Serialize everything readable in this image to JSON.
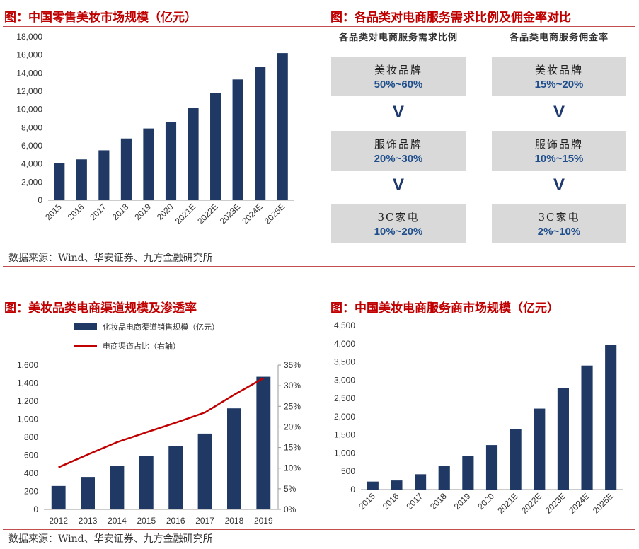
{
  "panels": {
    "p1": {
      "title": "图：中国零售美妆市场规模（亿元）"
    },
    "p2": {
      "title": "图：各品类对电商服务需求比例及佣金率对比",
      "col1_head": "各品类对电商服务需求比例",
      "col2_head": "各品类电商服务佣金率",
      "col1": [
        {
          "name": "美妆品牌",
          "range": "50%~60%"
        },
        {
          "name": "服饰品牌",
          "range": "20%~30%"
        },
        {
          "name": "3C家电",
          "range": "10%~20%"
        }
      ],
      "col2": [
        {
          "name": "美妆品牌",
          "range": "15%~20%"
        },
        {
          "name": "服饰品牌",
          "range": "10%~15%"
        },
        {
          "name": "3C家电",
          "range": "2%~10%"
        }
      ],
      "arrow": "V"
    },
    "p3": {
      "title": "图：美妆品类电商渠道规模及渗透率",
      "legend_bar": "化妆品电商渠道销售规模（亿元）",
      "legend_line": "电商渠道占比（右轴）"
    },
    "p4": {
      "title": "图：中国美妆电商服务商市场规模（亿元）"
    }
  },
  "sources": {
    "top": "数据来源：Wind、华安证券、九方金融研究所",
    "bottom": "数据来源：Wind、华安证券、九方金融研究所"
  },
  "colors": {
    "bar": "#1f3864",
    "line": "#c00000",
    "title": "#c00000"
  },
  "chart_data": [
    {
      "type": "bar",
      "id": "c1",
      "categories": [
        "2015",
        "2016",
        "2017",
        "2018",
        "2019",
        "2020",
        "2021E",
        "2022E",
        "2023E",
        "2024E",
        "2025E"
      ],
      "values": [
        4100,
        4500,
        5500,
        6800,
        7900,
        8600,
        10200,
        11800,
        13300,
        14700,
        16200
      ],
      "ylim": [
        0,
        18000
      ],
      "yticks": [
        0,
        2000,
        4000,
        6000,
        8000,
        10000,
        12000,
        14000,
        16000,
        18000
      ],
      "ytick_labels": [
        "0",
        "2,000",
        "4,000",
        "6,000",
        "8,000",
        "10,000",
        "12,000",
        "14,000",
        "16,000",
        "18,000"
      ]
    },
    {
      "type": "bar+line",
      "id": "c3",
      "categories": [
        "2012",
        "2013",
        "2014",
        "2015",
        "2016",
        "2017",
        "2018",
        "2019"
      ],
      "bar_values": [
        260,
        360,
        480,
        590,
        700,
        840,
        1120,
        1470
      ],
      "line_values": [
        10.2,
        13.3,
        16.3,
        18.7,
        21.0,
        23.5,
        27.8,
        31.8
      ],
      "ylim": [
        0,
        1600
      ],
      "y2lim": [
        0,
        35
      ],
      "yticks": [
        0,
        200,
        400,
        600,
        800,
        1000,
        1200,
        1400,
        1600
      ],
      "ytick_labels": [
        "0",
        "200",
        "400",
        "600",
        "800",
        "1,000",
        "1,200",
        "1,400",
        "1,600"
      ],
      "y2ticks": [
        0,
        5,
        10,
        15,
        20,
        25,
        30,
        35
      ],
      "y2tick_labels": [
        "0%",
        "5%",
        "10%",
        "15%",
        "20%",
        "25%",
        "30%",
        "35%"
      ]
    },
    {
      "type": "bar",
      "id": "c4",
      "categories": [
        "2015",
        "2016",
        "2017",
        "2018",
        "2019",
        "2020",
        "2021E",
        "2022E",
        "2023E",
        "2024E",
        "2025E"
      ],
      "values": [
        220,
        250,
        420,
        640,
        920,
        1220,
        1660,
        2220,
        2790,
        3400,
        3970
      ],
      "ylim": [
        0,
        4500
      ],
      "yticks": [
        0,
        500,
        1000,
        1500,
        2000,
        2500,
        3000,
        3500,
        4000,
        4500
      ],
      "ytick_labels": [
        "0",
        "500",
        "1,000",
        "1,500",
        "2,000",
        "2,500",
        "3,000",
        "3,500",
        "4,000",
        "4,500"
      ]
    }
  ]
}
